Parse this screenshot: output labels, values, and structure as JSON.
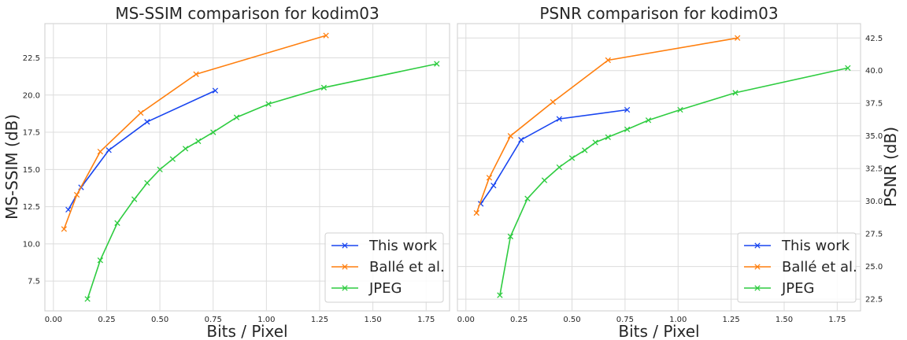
{
  "chart_data": [
    {
      "type": "line",
      "title": "MS-SSIM comparison for kodim03",
      "xlabel": "Bits / Pixel",
      "ylabel": "MS-SSIM (dB)",
      "xlim": [
        -0.04,
        1.86
      ],
      "ylim": [
        5.5,
        24.8
      ],
      "x_ticks": [
        "0.00",
        "0.25",
        "0.50",
        "0.75",
        "1.00",
        "1.25",
        "1.50",
        "1.75"
      ],
      "y_ticks": [
        "7.5",
        "10.0",
        "12.5",
        "15.0",
        "17.5",
        "20.0",
        "22.5"
      ],
      "y_axis_side": "left",
      "grid": true,
      "legend_position": "lower right",
      "series": [
        {
          "name": "This work",
          "color": "#1845f0",
          "x": [
            0.07,
            0.13,
            0.26,
            0.44,
            0.76
          ],
          "y": [
            12.3,
            13.8,
            16.3,
            18.2,
            20.3
          ]
        },
        {
          "name": "Ballé et al.",
          "color": "#ff7f0e",
          "x": [
            0.05,
            0.11,
            0.22,
            0.41,
            0.67,
            1.28
          ],
          "y": [
            11.0,
            13.3,
            16.2,
            18.8,
            21.4,
            24.0
          ]
        },
        {
          "name": "JPEG",
          "color": "#2ecc40",
          "x": [
            0.16,
            0.22,
            0.3,
            0.38,
            0.44,
            0.5,
            0.56,
            0.62,
            0.68,
            0.75,
            0.86,
            1.01,
            1.27,
            1.8
          ],
          "y": [
            6.3,
            8.9,
            11.4,
            13.0,
            14.1,
            15.0,
            15.7,
            16.4,
            16.9,
            17.5,
            18.5,
            19.4,
            20.5,
            22.1
          ]
        }
      ]
    },
    {
      "type": "line",
      "title": "PSNR comparison for kodim03",
      "xlabel": "Bits / Pixel",
      "ylabel": "PSNR (dB)",
      "xlim": [
        -0.04,
        1.86
      ],
      "ylim": [
        21.6,
        43.6
      ],
      "x_ticks": [
        "0.00",
        "0.25",
        "0.50",
        "0.75",
        "1.00",
        "1.25",
        "1.50",
        "1.75"
      ],
      "y_ticks": [
        "22.5",
        "25.0",
        "27.5",
        "30.0",
        "32.5",
        "35.0",
        "37.5",
        "40.0",
        "42.5"
      ],
      "y_axis_side": "right",
      "grid": true,
      "legend_position": "lower right",
      "series": [
        {
          "name": "This work",
          "color": "#1845f0",
          "x": [
            0.07,
            0.13,
            0.26,
            0.44,
            0.76
          ],
          "y": [
            29.8,
            31.2,
            34.7,
            36.3,
            37.0
          ]
        },
        {
          "name": "Ballé et al.",
          "color": "#ff7f0e",
          "x": [
            0.05,
            0.11,
            0.21,
            0.41,
            0.67,
            1.28
          ],
          "y": [
            29.1,
            31.8,
            35.0,
            37.6,
            40.8,
            42.5
          ]
        },
        {
          "name": "JPEG",
          "color": "#2ecc40",
          "x": [
            0.16,
            0.21,
            0.29,
            0.37,
            0.44,
            0.5,
            0.56,
            0.61,
            0.67,
            0.76,
            0.86,
            1.01,
            1.27,
            1.8
          ],
          "y": [
            22.8,
            27.3,
            30.2,
            31.6,
            32.6,
            33.3,
            33.9,
            34.5,
            34.9,
            35.5,
            36.2,
            37.0,
            38.3,
            40.2
          ]
        }
      ]
    }
  ]
}
